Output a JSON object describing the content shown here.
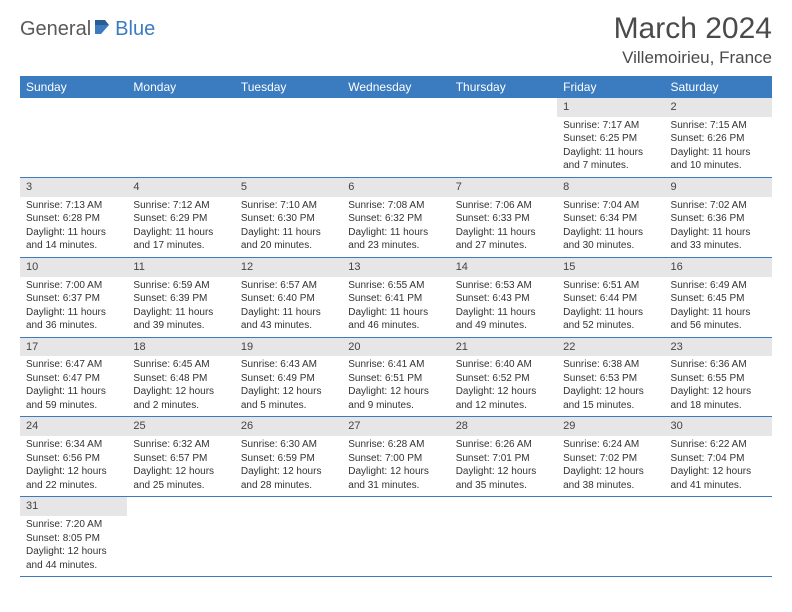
{
  "logo": {
    "part1": "General",
    "part2": "Blue"
  },
  "title": "March 2024",
  "location": "Villemoirieu, France",
  "header_color": "#3b7bbf",
  "daynum_bg": "#e6e6e6",
  "border_color": "#3b7bbf",
  "font_family": "Arial",
  "dayHeaders": [
    "Sunday",
    "Monday",
    "Tuesday",
    "Wednesday",
    "Thursday",
    "Friday",
    "Saturday"
  ],
  "weeks": [
    [
      null,
      null,
      null,
      null,
      null,
      {
        "n": "1",
        "sunrise": "Sunrise: 7:17 AM",
        "sunset": "Sunset: 6:25 PM",
        "daylight": "Daylight: 11 hours and 7 minutes."
      },
      {
        "n": "2",
        "sunrise": "Sunrise: 7:15 AM",
        "sunset": "Sunset: 6:26 PM",
        "daylight": "Daylight: 11 hours and 10 minutes."
      }
    ],
    [
      {
        "n": "3",
        "sunrise": "Sunrise: 7:13 AM",
        "sunset": "Sunset: 6:28 PM",
        "daylight": "Daylight: 11 hours and 14 minutes."
      },
      {
        "n": "4",
        "sunrise": "Sunrise: 7:12 AM",
        "sunset": "Sunset: 6:29 PM",
        "daylight": "Daylight: 11 hours and 17 minutes."
      },
      {
        "n": "5",
        "sunrise": "Sunrise: 7:10 AM",
        "sunset": "Sunset: 6:30 PM",
        "daylight": "Daylight: 11 hours and 20 minutes."
      },
      {
        "n": "6",
        "sunrise": "Sunrise: 7:08 AM",
        "sunset": "Sunset: 6:32 PM",
        "daylight": "Daylight: 11 hours and 23 minutes."
      },
      {
        "n": "7",
        "sunrise": "Sunrise: 7:06 AM",
        "sunset": "Sunset: 6:33 PM",
        "daylight": "Daylight: 11 hours and 27 minutes."
      },
      {
        "n": "8",
        "sunrise": "Sunrise: 7:04 AM",
        "sunset": "Sunset: 6:34 PM",
        "daylight": "Daylight: 11 hours and 30 minutes."
      },
      {
        "n": "9",
        "sunrise": "Sunrise: 7:02 AM",
        "sunset": "Sunset: 6:36 PM",
        "daylight": "Daylight: 11 hours and 33 minutes."
      }
    ],
    [
      {
        "n": "10",
        "sunrise": "Sunrise: 7:00 AM",
        "sunset": "Sunset: 6:37 PM",
        "daylight": "Daylight: 11 hours and 36 minutes."
      },
      {
        "n": "11",
        "sunrise": "Sunrise: 6:59 AM",
        "sunset": "Sunset: 6:39 PM",
        "daylight": "Daylight: 11 hours and 39 minutes."
      },
      {
        "n": "12",
        "sunrise": "Sunrise: 6:57 AM",
        "sunset": "Sunset: 6:40 PM",
        "daylight": "Daylight: 11 hours and 43 minutes."
      },
      {
        "n": "13",
        "sunrise": "Sunrise: 6:55 AM",
        "sunset": "Sunset: 6:41 PM",
        "daylight": "Daylight: 11 hours and 46 minutes."
      },
      {
        "n": "14",
        "sunrise": "Sunrise: 6:53 AM",
        "sunset": "Sunset: 6:43 PM",
        "daylight": "Daylight: 11 hours and 49 minutes."
      },
      {
        "n": "15",
        "sunrise": "Sunrise: 6:51 AM",
        "sunset": "Sunset: 6:44 PM",
        "daylight": "Daylight: 11 hours and 52 minutes."
      },
      {
        "n": "16",
        "sunrise": "Sunrise: 6:49 AM",
        "sunset": "Sunset: 6:45 PM",
        "daylight": "Daylight: 11 hours and 56 minutes."
      }
    ],
    [
      {
        "n": "17",
        "sunrise": "Sunrise: 6:47 AM",
        "sunset": "Sunset: 6:47 PM",
        "daylight": "Daylight: 11 hours and 59 minutes."
      },
      {
        "n": "18",
        "sunrise": "Sunrise: 6:45 AM",
        "sunset": "Sunset: 6:48 PM",
        "daylight": "Daylight: 12 hours and 2 minutes."
      },
      {
        "n": "19",
        "sunrise": "Sunrise: 6:43 AM",
        "sunset": "Sunset: 6:49 PM",
        "daylight": "Daylight: 12 hours and 5 minutes."
      },
      {
        "n": "20",
        "sunrise": "Sunrise: 6:41 AM",
        "sunset": "Sunset: 6:51 PM",
        "daylight": "Daylight: 12 hours and 9 minutes."
      },
      {
        "n": "21",
        "sunrise": "Sunrise: 6:40 AM",
        "sunset": "Sunset: 6:52 PM",
        "daylight": "Daylight: 12 hours and 12 minutes."
      },
      {
        "n": "22",
        "sunrise": "Sunrise: 6:38 AM",
        "sunset": "Sunset: 6:53 PM",
        "daylight": "Daylight: 12 hours and 15 minutes."
      },
      {
        "n": "23",
        "sunrise": "Sunrise: 6:36 AM",
        "sunset": "Sunset: 6:55 PM",
        "daylight": "Daylight: 12 hours and 18 minutes."
      }
    ],
    [
      {
        "n": "24",
        "sunrise": "Sunrise: 6:34 AM",
        "sunset": "Sunset: 6:56 PM",
        "daylight": "Daylight: 12 hours and 22 minutes."
      },
      {
        "n": "25",
        "sunrise": "Sunrise: 6:32 AM",
        "sunset": "Sunset: 6:57 PM",
        "daylight": "Daylight: 12 hours and 25 minutes."
      },
      {
        "n": "26",
        "sunrise": "Sunrise: 6:30 AM",
        "sunset": "Sunset: 6:59 PM",
        "daylight": "Daylight: 12 hours and 28 minutes."
      },
      {
        "n": "27",
        "sunrise": "Sunrise: 6:28 AM",
        "sunset": "Sunset: 7:00 PM",
        "daylight": "Daylight: 12 hours and 31 minutes."
      },
      {
        "n": "28",
        "sunrise": "Sunrise: 6:26 AM",
        "sunset": "Sunset: 7:01 PM",
        "daylight": "Daylight: 12 hours and 35 minutes."
      },
      {
        "n": "29",
        "sunrise": "Sunrise: 6:24 AM",
        "sunset": "Sunset: 7:02 PM",
        "daylight": "Daylight: 12 hours and 38 minutes."
      },
      {
        "n": "30",
        "sunrise": "Sunrise: 6:22 AM",
        "sunset": "Sunset: 7:04 PM",
        "daylight": "Daylight: 12 hours and 41 minutes."
      }
    ],
    [
      {
        "n": "31",
        "sunrise": "Sunrise: 7:20 AM",
        "sunset": "Sunset: 8:05 PM",
        "daylight": "Daylight: 12 hours and 44 minutes."
      },
      null,
      null,
      null,
      null,
      null,
      null
    ]
  ]
}
